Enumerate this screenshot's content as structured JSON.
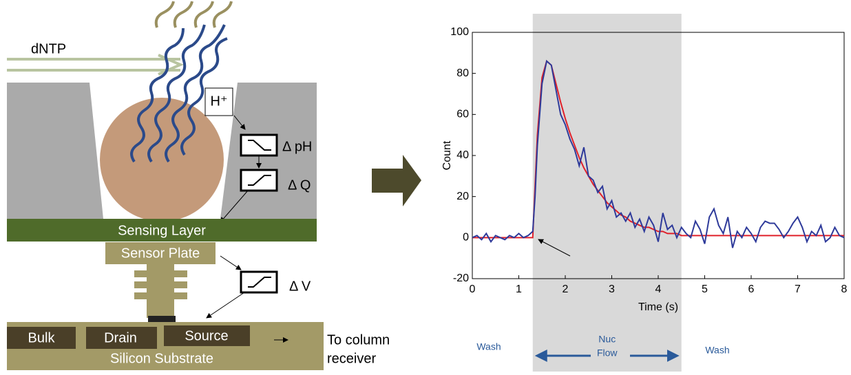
{
  "diagram": {
    "dntp": "dNTP",
    "proton": "H⁺",
    "delta_ph": "Δ pH",
    "delta_q": "Δ Q",
    "sensing_layer": "Sensing Layer",
    "sensor_plate": "Sensor Plate",
    "delta_v": "Δ V",
    "bulk": "Bulk",
    "drain": "Drain",
    "source": "Source",
    "substrate": "Silicon Substrate",
    "output": [
      "To column",
      "receiver"
    ]
  },
  "chart_data": {
    "type": "line",
    "xlabel": "Time (s)",
    "ylabel": "Count",
    "xlim": [
      0,
      8
    ],
    "ylim": [
      -20,
      100
    ],
    "xticks": [
      0,
      1,
      2,
      3,
      4,
      5,
      6,
      7,
      8
    ],
    "yticks": [
      -20,
      0,
      20,
      40,
      60,
      80,
      100
    ],
    "shaded_xrange": [
      1.3,
      4.5
    ],
    "shade_color": "#d9d9d9",
    "phase_labels": [
      "Wash",
      [
        "Nuc",
        "Flow"
      ],
      "Wash"
    ],
    "phase_color": "#2a5a9a",
    "x": [
      0,
      0.1,
      0.2,
      0.3,
      0.4,
      0.5,
      0.6,
      0.7,
      0.8,
      0.9,
      1.0,
      1.1,
      1.2,
      1.3,
      1.35,
      1.4,
      1.5,
      1.6,
      1.7,
      1.8,
      1.9,
      2.0,
      2.1,
      2.2,
      2.3,
      2.4,
      2.5,
      2.6,
      2.7,
      2.8,
      2.9,
      3.0,
      3.1,
      3.2,
      3.3,
      3.4,
      3.5,
      3.6,
      3.7,
      3.8,
      3.9,
      4.0,
      4.1,
      4.2,
      4.3,
      4.4,
      4.5,
      4.6,
      4.7,
      4.8,
      4.9,
      5.0,
      5.1,
      5.2,
      5.3,
      5.4,
      5.5,
      5.6,
      5.7,
      5.8,
      5.9,
      6.0,
      6.1,
      6.2,
      6.3,
      6.4,
      6.5,
      6.6,
      6.7,
      6.8,
      6.9,
      7.0,
      7.1,
      7.2,
      7.3,
      7.4,
      7.5,
      7.6,
      7.7,
      7.8,
      7.9,
      8.0
    ],
    "series": [
      {
        "color": "#2e3a9a",
        "values": [
          0,
          1,
          -1,
          2,
          -2,
          1,
          0,
          -1,
          1,
          0,
          2,
          0,
          1,
          3,
          20,
          45,
          75,
          86,
          84,
          72,
          60,
          55,
          48,
          43,
          35,
          44,
          30,
          28,
          22,
          25,
          14,
          18,
          10,
          12,
          8,
          12,
          5,
          9,
          3,
          10,
          6,
          -2,
          12,
          4,
          6,
          0,
          5,
          2,
          0,
          8,
          4,
          -3,
          10,
          14,
          6,
          2,
          10,
          -5,
          3,
          0,
          5,
          2,
          -2,
          5,
          8,
          7,
          7,
          4,
          0,
          3,
          7,
          10,
          5,
          -2,
          3,
          1,
          6,
          -2,
          0,
          5,
          1,
          0
        ]
      },
      {
        "color": "#e0202a",
        "values": [
          0,
          0,
          0,
          0,
          0,
          0,
          0,
          0,
          0,
          0,
          0,
          0,
          0,
          0,
          25,
          50,
          78,
          86,
          84,
          75,
          66,
          58,
          51,
          45,
          39,
          34,
          30,
          26,
          23,
          20,
          17,
          15,
          13,
          11,
          10,
          8,
          7,
          6,
          5,
          5,
          4,
          3,
          3,
          2,
          2,
          2,
          1,
          1,
          1,
          1,
          1,
          1,
          1,
          1,
          1,
          1,
          1,
          1,
          1,
          1,
          1,
          1,
          1,
          1,
          1,
          1,
          1,
          1,
          1,
          1,
          1,
          1,
          1,
          1,
          1,
          1,
          1,
          1,
          1,
          1,
          1,
          1
        ]
      }
    ]
  }
}
